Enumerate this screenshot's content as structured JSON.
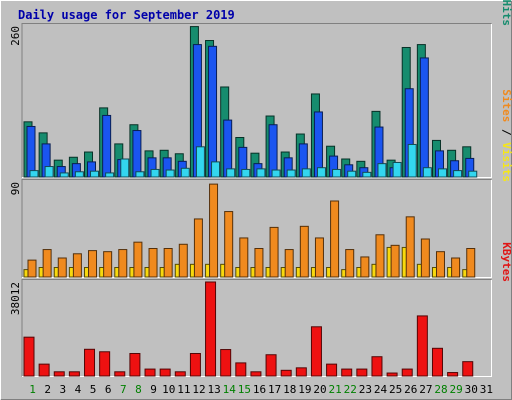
{
  "chart_data": {
    "type": "bar",
    "title": "Daily usage for September 2019",
    "categories": [
      "1",
      "2",
      "3",
      "4",
      "5",
      "6",
      "7",
      "8",
      "9",
      "10",
      "11",
      "12",
      "13",
      "14",
      "15",
      "16",
      "17",
      "18",
      "19",
      "20",
      "21",
      "22",
      "23",
      "24",
      "25",
      "26",
      "27",
      "28",
      "29",
      "30",
      "31"
    ],
    "weekend_days": [
      "1",
      "7",
      "8",
      "14",
      "15",
      "21",
      "22",
      "28",
      "29"
    ],
    "panels": [
      {
        "name": "pages-files-hits",
        "ymax": 260,
        "ymax_label": "260",
        "ylabel_parts": [
          {
            "text": "Pages",
            "color": "#00e0ff"
          },
          {
            "text": " / ",
            "color": "#000000"
          },
          {
            "text": "Files",
            "color": "#1a55f0"
          },
          {
            "text": " / ",
            "color": "#000000"
          },
          {
            "text": "Hits",
            "color": "#168c6e"
          }
        ],
        "series": [
          {
            "name": "Hits",
            "color": "#168c6e",
            "values": [
              95,
              76,
              29,
              34,
              43,
              119,
              57,
              90,
              45,
              46,
              40,
              259,
              235,
              155,
              68,
              41,
              105,
              43,
              74,
              143,
              53,
              31,
              27,
              113,
              29,
              223,
              228,
              63,
              46,
              52,
              0
            ]
          },
          {
            "name": "Files",
            "color": "#1a55f0",
            "values": [
              87,
              57,
              18,
              23,
              26,
              106,
              30,
              80,
              33,
              33,
              27,
              228,
              225,
              98,
              51,
              23,
              90,
              33,
              57,
              112,
              36,
              21,
              16,
              86,
              16,
              152,
              205,
              45,
              28,
              32,
              0
            ]
          },
          {
            "name": "Pages",
            "color": "#33d6ef",
            "values": [
              11,
              18,
              7,
              9,
              10,
              7,
              31,
              9,
              13,
              12,
              15,
              52,
              26,
              14,
              13,
              14,
              12,
              12,
              14,
              16,
              13,
              10,
              8,
              23,
              25,
              56,
              16,
              14,
              11,
              10,
              0
            ]
          }
        ]
      },
      {
        "name": "sites-visits",
        "ymax": 90,
        "ymax_label": "90",
        "ylabel_parts": [
          {
            "text": "Sites",
            "color": "#f08a1e"
          },
          {
            "text": " / ",
            "color": "#000000"
          },
          {
            "text": "Visits",
            "color": "#f5e619"
          }
        ],
        "series": [
          {
            "name": "Visits",
            "color": "#f8d90e",
            "values": [
              7,
              9,
              9,
              9,
              9,
              9,
              9,
              9,
              9,
              9,
              12,
              12,
              12,
              12,
              9,
              9,
              9,
              9,
              9,
              9,
              9,
              7,
              9,
              12,
              28,
              28,
              12,
              9,
              9,
              7,
              0
            ]
          },
          {
            "name": "Sites",
            "color": "#f08a1e",
            "values": [
              16,
              26,
              18,
              22,
              25,
              24,
              26,
              33,
              27,
              27,
              31,
              55,
              88,
              62,
              37,
              27,
              47,
              26,
              48,
              37,
              72,
              26,
              19,
              40,
              30,
              57,
              36,
              24,
              18,
              27,
              0
            ]
          }
        ]
      },
      {
        "name": "kbytes",
        "ymax": 38012,
        "ymax_label": "38012",
        "ylabel_parts": [
          {
            "text": "KBytes",
            "color": "#e01616"
          }
        ],
        "series": [
          {
            "name": "KBytes",
            "color": "#ee1111",
            "values": [
              15700,
              4800,
              1700,
              1700,
              10800,
              9800,
              1700,
              9100,
              2800,
              2800,
              1700,
              9100,
              38012,
              10700,
              5300,
              1700,
              8600,
              2300,
              3300,
              19900,
              4800,
              2800,
              2800,
              7800,
              1200,
              2800,
              24300,
              11200,
              1400,
              5800,
              0
            ]
          }
        ]
      }
    ]
  }
}
